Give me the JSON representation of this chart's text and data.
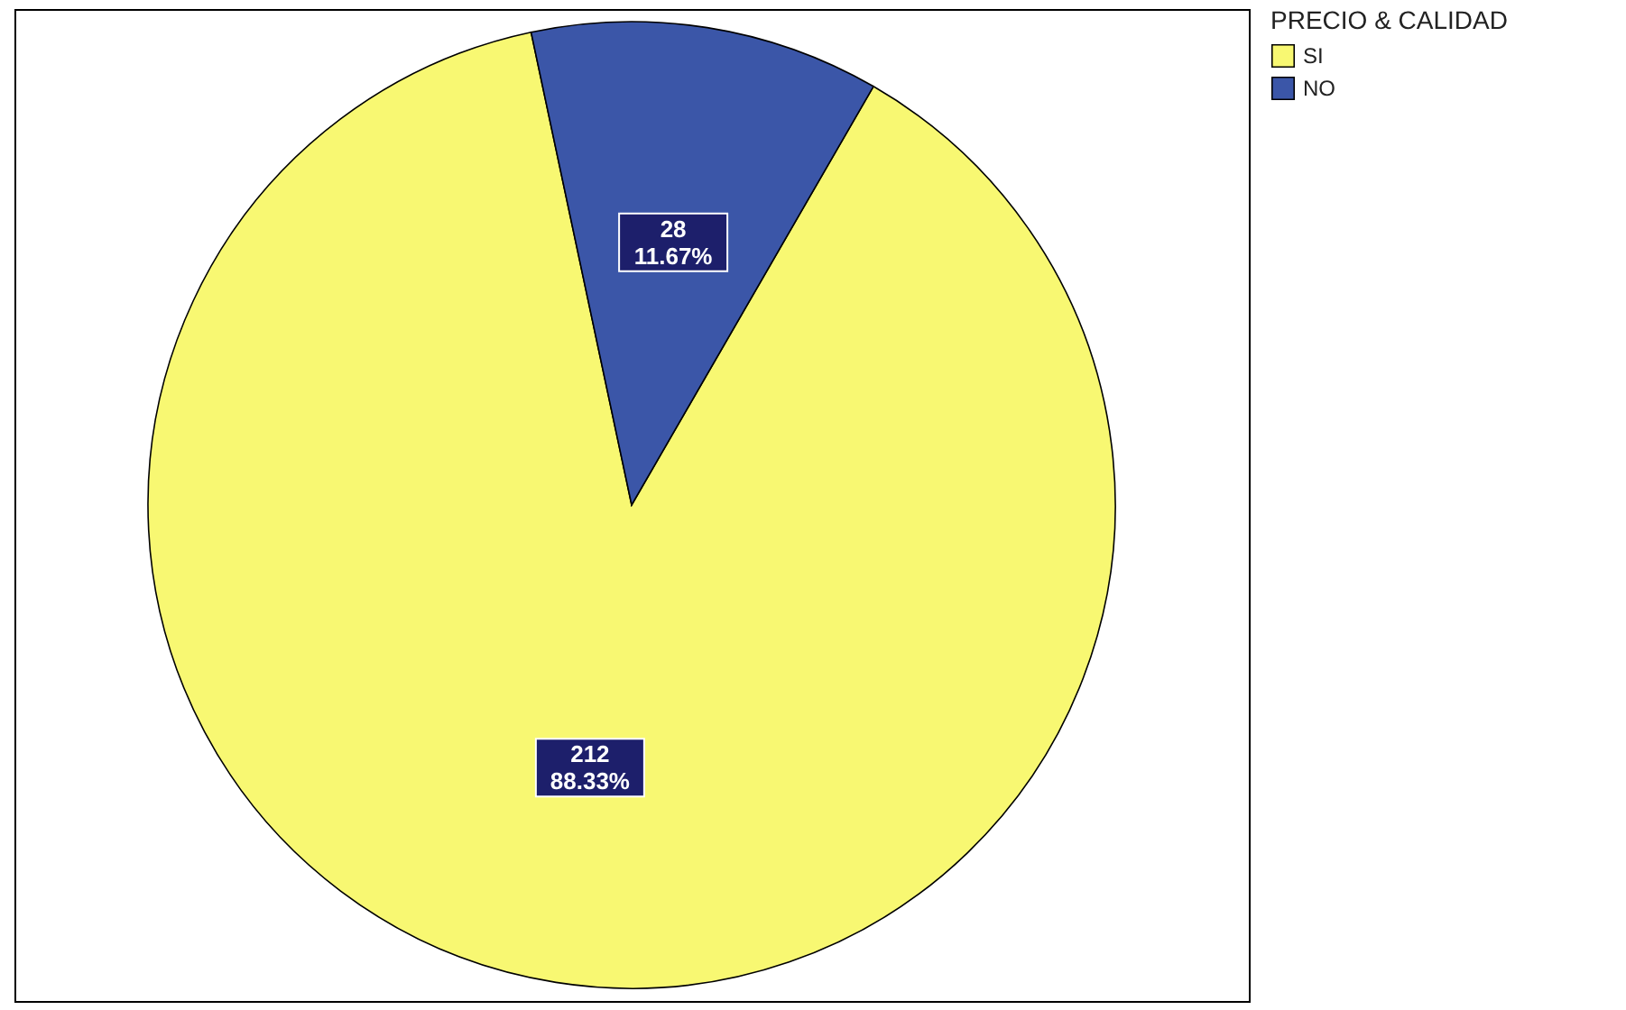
{
  "chart_data": {
    "type": "pie",
    "legend_title": "PRECIO & CALIDAD",
    "categories": [
      "SI",
      "NO"
    ],
    "values": [
      212,
      28
    ],
    "colors": [
      "#f8f872",
      "#3b56a8"
    ],
    "value_labels": [
      "212\n88.33%",
      "28\n11.67%"
    ],
    "legend": "top right"
  }
}
